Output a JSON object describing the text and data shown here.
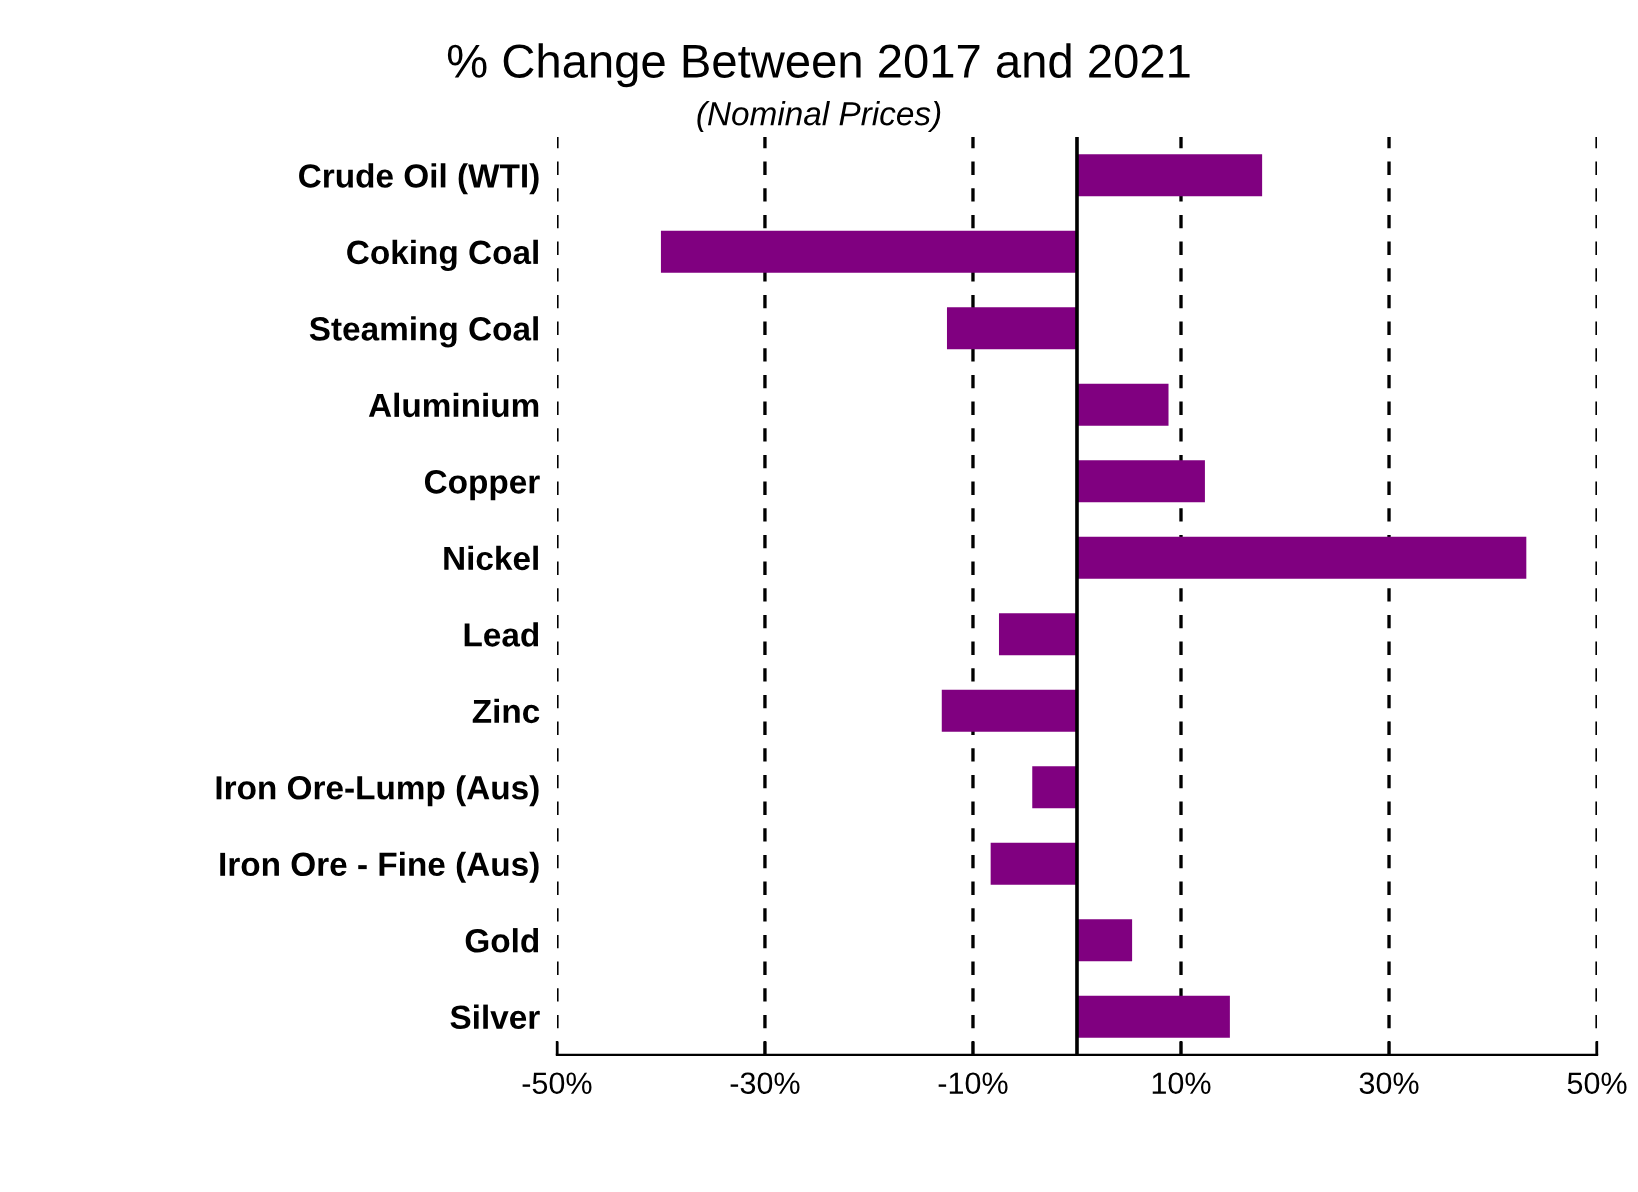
{
  "chart_data": {
    "type": "bar",
    "orientation": "horizontal",
    "title": "% Change Between 2017 and 2021",
    "subtitle": "(Nominal Prices)",
    "categories": [
      "Crude Oil (WTI)",
      "Coking Coal",
      "Steaming Coal",
      "Aluminium",
      "Copper",
      "Nickel",
      "Lead",
      "Zinc",
      "Iron Ore-Lump (Aus)",
      "Iron Ore - Fine (Aus)",
      "Gold",
      "Silver"
    ],
    "values": [
      17.8,
      -40.0,
      -12.5,
      8.8,
      12.3,
      43.2,
      -7.5,
      -13.0,
      -4.3,
      -8.3,
      5.3,
      14.7
    ],
    "color": "#800080",
    "xlim": [
      -50,
      50
    ],
    "xticks": [
      {
        "value": -50,
        "label": "-50%"
      },
      {
        "value": -30,
        "label": "-30%"
      },
      {
        "value": -10,
        "label": "-10%"
      },
      {
        "value": 10,
        "label": "10%"
      },
      {
        "value": 30,
        "label": "30%"
      },
      {
        "value": 50,
        "label": "50%"
      }
    ],
    "grid": "x",
    "line_style": "dashed"
  }
}
